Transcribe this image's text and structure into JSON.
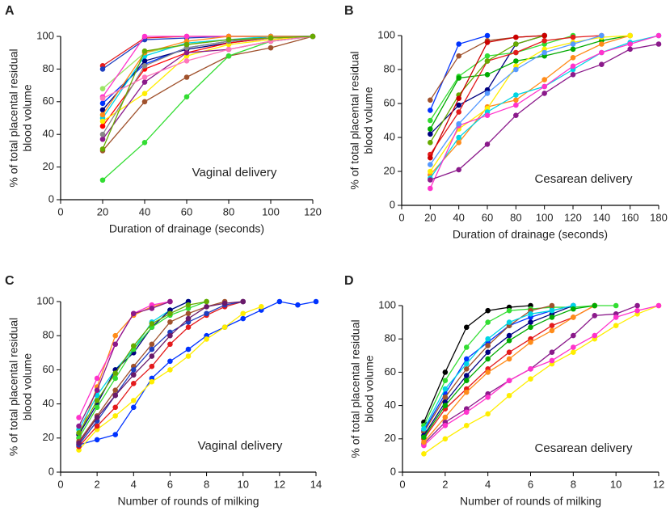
{
  "chart_data": [
    {
      "type": "line",
      "panel": "A",
      "annotation": "Vaginal delivery",
      "xlabel": "Duration of drainage (seconds)",
      "ylabel": [
        "% of total placental residual",
        "blood volume"
      ],
      "x": [
        20,
        40,
        60,
        80,
        100,
        120
      ],
      "xlim": [
        0,
        120
      ],
      "xticks": [
        0,
        20,
        40,
        60,
        80,
        100,
        120
      ],
      "ylim": [
        0,
        100
      ],
      "yticks": [
        0,
        20,
        40,
        60,
        80,
        100
      ],
      "series": [
        {
          "color": "#e41a1c",
          "values": [
            82,
            99,
            100,
            100,
            100,
            100
          ]
        },
        {
          "color": "#1f3fbf",
          "values": [
            80,
            98,
            99,
            100,
            100,
            100
          ]
        },
        {
          "color": "#9be564",
          "values": [
            68,
            90,
            95,
            98,
            99,
            100
          ]
        },
        {
          "color": "#ff33cc",
          "values": [
            63,
            100,
            100,
            100,
            100,
            100
          ]
        },
        {
          "color": "#0033ff",
          "values": [
            59,
            83,
            93,
            97,
            100,
            100
          ]
        },
        {
          "color": "#000080",
          "values": [
            55,
            85,
            92,
            96,
            99,
            100
          ]
        },
        {
          "color": "#ff0000",
          "values": [
            45,
            80,
            90,
            96,
            99,
            100
          ]
        },
        {
          "color": "#00d5e5",
          "values": [
            50,
            88,
            96,
            98,
            100,
            100
          ]
        },
        {
          "color": "#ff8c1a",
          "values": [
            52,
            90,
            97,
            100,
            100,
            100
          ]
        },
        {
          "color": "#ffee00",
          "values": [
            48,
            65,
            88,
            95,
            98,
            100
          ]
        },
        {
          "color": "#8b1a8b",
          "values": [
            37,
            72,
            90,
            92,
            97,
            100
          ]
        },
        {
          "color": "#a0522d",
          "values": [
            30,
            60,
            75,
            88,
            93,
            100
          ]
        },
        {
          "color": "#33dd33",
          "values": [
            12,
            35,
            63,
            88,
            97,
            100
          ]
        },
        {
          "color": "#888888",
          "values": [
            40,
            82,
            93,
            97,
            99,
            100
          ]
        },
        {
          "color": "#ff77bb",
          "values": [
            62,
            75,
            85,
            92,
            97,
            100
          ]
        },
        {
          "color": "#66aa00",
          "values": [
            31,
            91,
            95,
            98,
            99,
            100
          ]
        }
      ]
    },
    {
      "type": "line",
      "panel": "B",
      "annotation": "Cesarean delivery",
      "xlabel": "Duration of drainage (seconds)",
      "ylabel": [
        "% of total placental residual",
        "blood volume"
      ],
      "x": [
        20,
        40,
        60,
        80,
        100,
        120,
        140,
        160,
        180
      ],
      "xlim": [
        0,
        180
      ],
      "xticks": [
        0,
        20,
        40,
        60,
        80,
        100,
        120,
        140,
        160,
        180
      ],
      "ylim": [
        0,
        100
      ],
      "yticks": [
        0,
        20,
        40,
        60,
        80,
        100
      ],
      "series": [
        {
          "color": "#0033ff",
          "values": [
            56,
            95,
            100,
            null,
            null,
            null,
            null,
            null,
            null
          ]
        },
        {
          "color": "#a0522d",
          "values": [
            62,
            88,
            97,
            99,
            100,
            null,
            null,
            null,
            null
          ]
        },
        {
          "color": "#000080",
          "values": [
            42,
            59,
            68,
            95,
            100,
            null,
            null,
            null,
            null
          ]
        },
        {
          "color": "#33dd33",
          "values": [
            50,
            76,
            88,
            90,
            95,
            100,
            null,
            null,
            null
          ]
        },
        {
          "color": "#00aa00",
          "values": [
            45,
            75,
            77,
            85,
            88,
            92,
            97,
            100,
            null
          ]
        },
        {
          "color": "#e41a1c",
          "values": [
            30,
            55,
            85,
            90,
            97,
            99,
            100,
            null,
            null
          ]
        },
        {
          "color": "#ff8c1a",
          "values": [
            18,
            37,
            58,
            62,
            74,
            87,
            95,
            100,
            null
          ]
        },
        {
          "color": "#ffee00",
          "values": [
            20,
            45,
            57,
            82,
            92,
            96,
            99,
            100,
            null
          ]
        },
        {
          "color": "#00d5e5",
          "values": [
            16,
            40,
            55,
            65,
            70,
            80,
            90,
            96,
            100
          ]
        },
        {
          "color": "#ff33cc",
          "values": [
            10,
            47,
            53,
            59,
            70,
            82,
            90,
            95,
            100
          ]
        },
        {
          "color": "#8b1a8b",
          "values": [
            15,
            21,
            36,
            53,
            66,
            77,
            83,
            92,
            95
          ]
        },
        {
          "color": "#66aa00",
          "values": [
            37,
            65,
            85,
            95,
            100,
            null,
            null,
            null,
            null
          ]
        },
        {
          "color": "#cc0000",
          "values": [
            28,
            63,
            96,
            99,
            100,
            null,
            null,
            null,
            null
          ]
        },
        {
          "color": "#5599ff",
          "values": [
            24,
            48,
            66,
            80,
            90,
            95,
            100,
            null,
            null
          ]
        }
      ]
    },
    {
      "type": "line",
      "panel": "C",
      "annotation": "Vaginal delivery",
      "xlabel": "Number of rounds of milking",
      "ylabel": [
        "% of total placental residual",
        "blood volume"
      ],
      "x": [
        1,
        2,
        3,
        4,
        5,
        6,
        7,
        8,
        9,
        10,
        11,
        12,
        13,
        14
      ],
      "xlim": [
        0,
        14
      ],
      "xticks": [
        0,
        2,
        4,
        6,
        8,
        10,
        12,
        14
      ],
      "ylim": [
        0,
        100
      ],
      "yticks": [
        0,
        20,
        40,
        60,
        80,
        100
      ],
      "series": [
        {
          "color": "#0033ff",
          "values": [
            16,
            19,
            22,
            38,
            55,
            65,
            72,
            80,
            85,
            90,
            95,
            100,
            98,
            100
          ]
        },
        {
          "color": "#ffee00",
          "values": [
            13,
            25,
            33,
            42,
            53,
            60,
            68,
            78,
            85,
            93,
            97,
            null,
            null,
            null
          ]
        },
        {
          "color": "#ff8c1a",
          "values": [
            20,
            50,
            80,
            92,
            97,
            100,
            null,
            null,
            null,
            null,
            null,
            null,
            null,
            null
          ]
        },
        {
          "color": "#ff33cc",
          "values": [
            32,
            55,
            75,
            93,
            98,
            100,
            null,
            null,
            null,
            null,
            null,
            null,
            null,
            null
          ]
        },
        {
          "color": "#00d5e5",
          "values": [
            25,
            45,
            60,
            72,
            88,
            95,
            100,
            null,
            null,
            null,
            null,
            null,
            null,
            null
          ]
        },
        {
          "color": "#8b1a8b",
          "values": [
            27,
            48,
            75,
            93,
            96,
            100,
            null,
            null,
            null,
            null,
            null,
            null,
            null,
            null
          ]
        },
        {
          "color": "#e41a1c",
          "values": [
            15,
            27,
            38,
            52,
            62,
            75,
            85,
            92,
            97,
            100,
            null,
            null,
            null,
            null
          ]
        },
        {
          "color": "#000080",
          "values": [
            22,
            40,
            60,
            70,
            85,
            95,
            100,
            null,
            null,
            null,
            null,
            null,
            null,
            null
          ]
        },
        {
          "color": "#33dd33",
          "values": [
            20,
            38,
            55,
            72,
            85,
            92,
            96,
            100,
            null,
            null,
            null,
            null,
            null,
            null
          ]
        },
        {
          "color": "#a0522d",
          "values": [
            18,
            33,
            48,
            62,
            75,
            88,
            93,
            97,
            100,
            null,
            null,
            null,
            null,
            null
          ]
        },
        {
          "color": "#1f3fbf",
          "values": [
            16,
            30,
            45,
            60,
            72,
            82,
            88,
            93,
            98,
            100,
            null,
            null,
            null,
            null
          ]
        },
        {
          "color": "#6a1a6a",
          "values": [
            17,
            32,
            45,
            57,
            68,
            80,
            90,
            97,
            99,
            100,
            null,
            null,
            null,
            null
          ]
        },
        {
          "color": "#66aa00",
          "values": [
            23,
            42,
            58,
            74,
            87,
            93,
            98,
            100,
            null,
            null,
            null,
            null,
            null,
            null
          ]
        }
      ]
    },
    {
      "type": "line",
      "panel": "D",
      "annotation": "Cesarean delivery",
      "xlabel": "Number of rounds of milking",
      "ylabel": [
        "% of total placental residual",
        "blood volume"
      ],
      "x": [
        1,
        2,
        3,
        4,
        5,
        6,
        7,
        8,
        9,
        10,
        11,
        12
      ],
      "xlim": [
        0,
        12
      ],
      "xticks": [
        0,
        2,
        4,
        6,
        8,
        10,
        12
      ],
      "ylim": [
        0,
        100
      ],
      "yticks": [
        0,
        20,
        40,
        60,
        80,
        100
      ],
      "series": [
        {
          "color": "#000000",
          "values": [
            30,
            60,
            87,
            97,
            99,
            100,
            null,
            null,
            null,
            null,
            null,
            null
          ]
        },
        {
          "color": "#33dd33",
          "values": [
            28,
            55,
            75,
            90,
            97,
            98,
            99,
            99,
            100,
            100,
            null,
            null
          ]
        },
        {
          "color": "#ffee00",
          "values": [
            11,
            20,
            28,
            35,
            46,
            56,
            65,
            72,
            80,
            88,
            95,
            100
          ]
        },
        {
          "color": "#8b1a8b",
          "values": [
            17,
            30,
            38,
            47,
            55,
            62,
            72,
            82,
            94,
            95,
            100,
            null
          ]
        },
        {
          "color": "#ff33cc",
          "values": [
            16,
            28,
            36,
            45,
            55,
            62,
            67,
            75,
            82,
            93,
            97,
            100
          ]
        },
        {
          "color": "#e41a1c",
          "values": [
            20,
            38,
            50,
            62,
            72,
            80,
            88,
            93,
            100,
            null,
            null,
            null
          ]
        },
        {
          "color": "#0033ff",
          "values": [
            25,
            47,
            68,
            78,
            88,
            93,
            97,
            100,
            null,
            null,
            null,
            null
          ]
        },
        {
          "color": "#a0522d",
          "values": [
            24,
            45,
            62,
            76,
            88,
            97,
            100,
            null,
            null,
            null,
            null,
            null
          ]
        },
        {
          "color": "#000080",
          "values": [
            22,
            42,
            58,
            72,
            82,
            90,
            95,
            100,
            null,
            null,
            null,
            null
          ]
        },
        {
          "color": "#00d5e5",
          "values": [
            26,
            50,
            65,
            80,
            90,
            95,
            97,
            100,
            null,
            null,
            null,
            null
          ]
        },
        {
          "color": "#ff8c1a",
          "values": [
            18,
            33,
            48,
            60,
            68,
            78,
            85,
            93,
            100,
            null,
            null,
            null
          ]
        },
        {
          "color": "#00aa00",
          "values": [
            21,
            40,
            55,
            68,
            79,
            87,
            93,
            98,
            100,
            null,
            null,
            null
          ]
        }
      ]
    }
  ]
}
